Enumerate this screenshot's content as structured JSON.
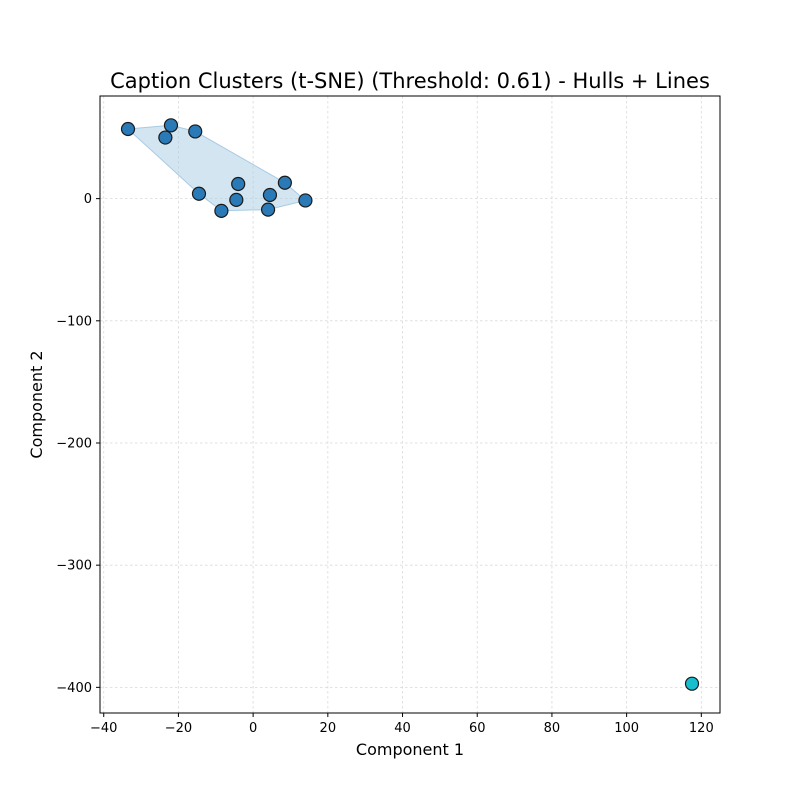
{
  "chart_data": {
    "type": "scatter",
    "title": "Caption Clusters (t-SNE) (Threshold: 0.61) - Hulls + Lines",
    "xlabel": "Component 1",
    "ylabel": "Component 2",
    "xlim": [
      -41,
      125
    ],
    "ylim": [
      -421,
      84
    ],
    "xticks": [
      -40,
      -20,
      0,
      20,
      40,
      60,
      80,
      100,
      120
    ],
    "yticks": [
      0,
      -100,
      -200,
      -300,
      -400
    ],
    "xtick_labels": [
      "−40",
      "−20",
      "0",
      "20",
      "40",
      "60",
      "80",
      "100",
      "120"
    ],
    "ytick_labels": [
      "0",
      "−100",
      "−200",
      "−300",
      "−400"
    ],
    "grid": true,
    "series": [
      {
        "color": "#2a7ab8",
        "hull_color": "#a8cbe3",
        "points": [
          {
            "x": -33.5,
            "y": 57
          },
          {
            "x": -22,
            "y": 60
          },
          {
            "x": -23.5,
            "y": 50
          },
          {
            "x": -15.5,
            "y": 55
          },
          {
            "x": -14.5,
            "y": 4
          },
          {
            "x": -4,
            "y": 12
          },
          {
            "x": -4.5,
            "y": -1
          },
          {
            "x": -8.5,
            "y": -10
          },
          {
            "x": 4.5,
            "y": 3
          },
          {
            "x": 8.5,
            "y": 13
          },
          {
            "x": 4,
            "y": -9
          },
          {
            "x": 14,
            "y": -1.5
          }
        ],
        "hull": [
          {
            "x": -33.5,
            "y": 57
          },
          {
            "x": -22,
            "y": 60
          },
          {
            "x": -15.5,
            "y": 55
          },
          {
            "x": 8.5,
            "y": 13
          },
          {
            "x": 14,
            "y": -1.5
          },
          {
            "x": 4,
            "y": -9
          },
          {
            "x": -8.5,
            "y": -10
          },
          {
            "x": -14.5,
            "y": 4
          }
        ]
      },
      {
        "color": "#17becf",
        "points": [
          {
            "x": 117.5,
            "y": -397
          }
        ]
      }
    ]
  }
}
